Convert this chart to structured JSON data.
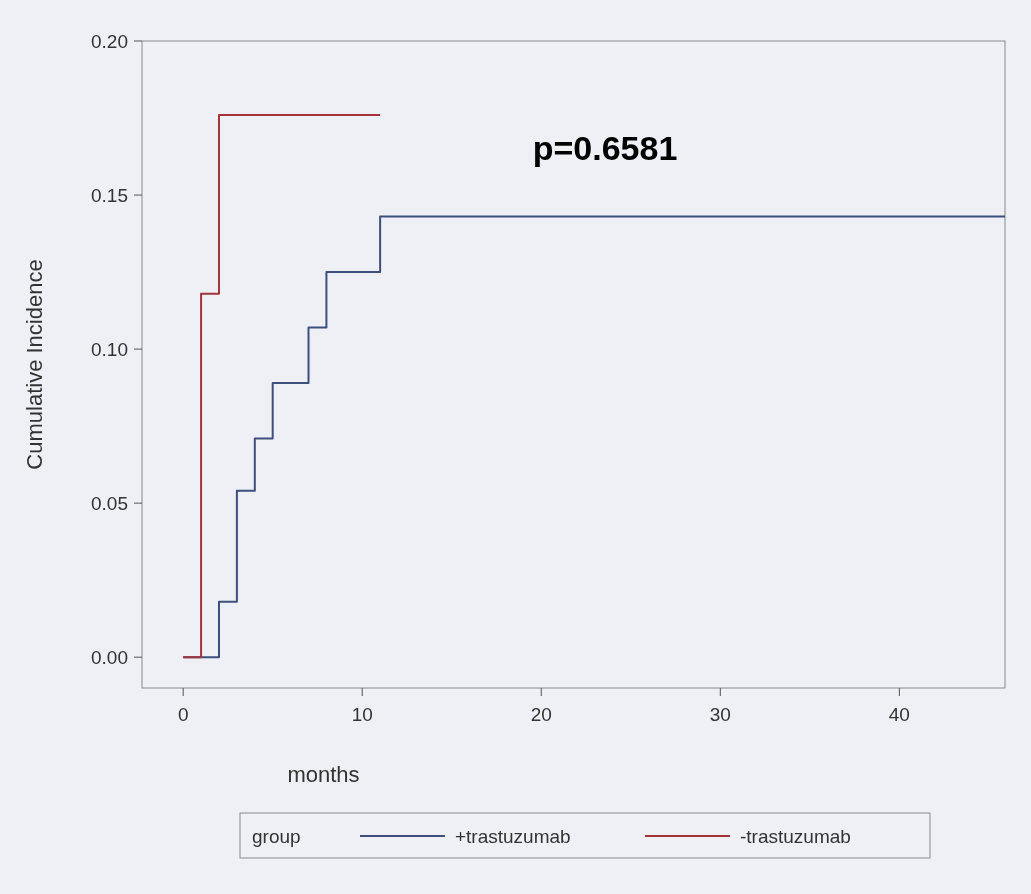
{
  "chart_data": {
    "type": "step",
    "xlabel": "months",
    "ylabel": "Cumulative Incidence",
    "legend_title": "group",
    "annotations": [
      "p=0.6581"
    ],
    "xlim": [
      -2.3,
      45.9
    ],
    "xticks": [
      0,
      10,
      20,
      30,
      40
    ],
    "ylim": [
      -0.01,
      0.2
    ],
    "yticks": [
      {
        "value": 0,
        "label": "0.00"
      },
      {
        "value": 0.05,
        "label": "0.05"
      },
      {
        "value": 0.1,
        "label": "0.10"
      },
      {
        "value": 0.15,
        "label": "0.15"
      },
      {
        "value": 0.2,
        "label": "0.20"
      }
    ],
    "grid": false,
    "legend": "bottom",
    "marker": "none",
    "line_style": "solid",
    "series": [
      {
        "name": "+trastuzumab",
        "color": "#3d4f7c",
        "x": [
          0,
          2,
          3,
          4,
          5,
          7,
          8,
          11,
          45.9
        ],
        "values": [
          0,
          0.018,
          0.054,
          0.071,
          0.089,
          0.107,
          0.125,
          0.143,
          0.143
        ]
      },
      {
        "name": "-trastuzumab",
        "color": "#a3343a",
        "x": [
          0,
          1,
          2,
          11
        ],
        "values": [
          0,
          0.118,
          0.176,
          0.176
        ]
      }
    ]
  }
}
